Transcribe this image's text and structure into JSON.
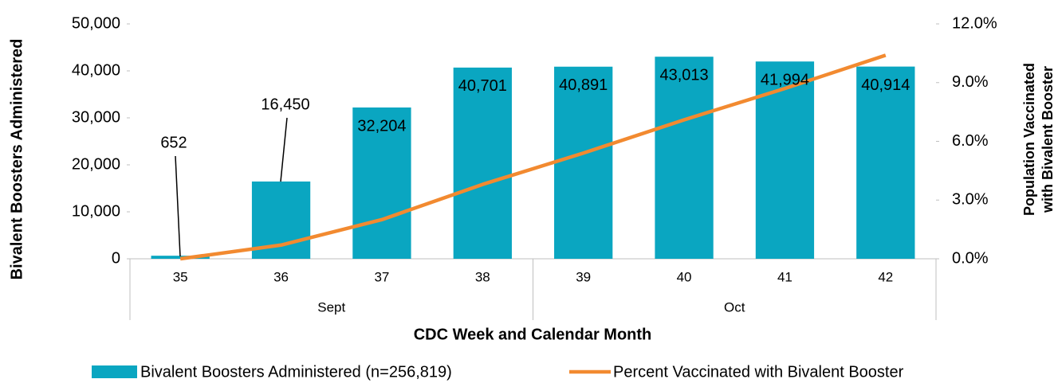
{
  "chart_data": {
    "type": "bar_line",
    "x_label": "CDC Week and Calendar Month",
    "y_label": "Bivalent Boosters Administered",
    "y2_label": [
      "Population Vaccinated",
      "with Bivalent Booster"
    ],
    "categories": [
      "35",
      "36",
      "37",
      "38",
      "39",
      "40",
      "41",
      "42"
    ],
    "groups": [
      {
        "name": "Sept",
        "categories": [
          "35",
          "36",
          "37",
          "38"
        ]
      },
      {
        "name": "Oct",
        "categories": [
          "39",
          "40",
          "41",
          "42"
        ]
      }
    ],
    "series": [
      {
        "name": "Bivalent Boosters Administered (n=256,819)",
        "type": "bar",
        "color": "#0aa6c1",
        "values": [
          652,
          16450,
          32204,
          40701,
          40891,
          43013,
          41994,
          40914
        ],
        "value_labels": [
          "652",
          "16,450",
          "32,204",
          "40,701",
          "40,891",
          "43,013",
          "41,994",
          "40,914"
        ]
      },
      {
        "name": "Percent Vaccinated with Bivalent Booster",
        "type": "line",
        "axis": "y2",
        "color": "#f28a30",
        "values": [
          0.0,
          0.7,
          2.0,
          3.8,
          5.4,
          7.1,
          8.7,
          10.4
        ]
      }
    ],
    "ylim": [
      0,
      50000
    ],
    "yticks": [
      0,
      {
        "value": 10000,
        "label": "10,000"
      },
      {
        "value": 20000,
        "label": "20,000"
      },
      {
        "value": 30000,
        "label": "30,000"
      },
      {
        "value": 40000,
        "label": "40,000"
      },
      {
        "value": 50000,
        "label": "50,000"
      }
    ],
    "y2lim": [
      0,
      12
    ],
    "y2ticks": [
      {
        "value": 0,
        "label": "0.0%"
      },
      {
        "value": 3,
        "label": "3.0%"
      },
      {
        "value": 6,
        "label": "6.0%"
      },
      {
        "value": 9,
        "label": "9.0%"
      },
      {
        "value": 12,
        "label": "12.0%"
      }
    ],
    "legend": "bottom"
  }
}
